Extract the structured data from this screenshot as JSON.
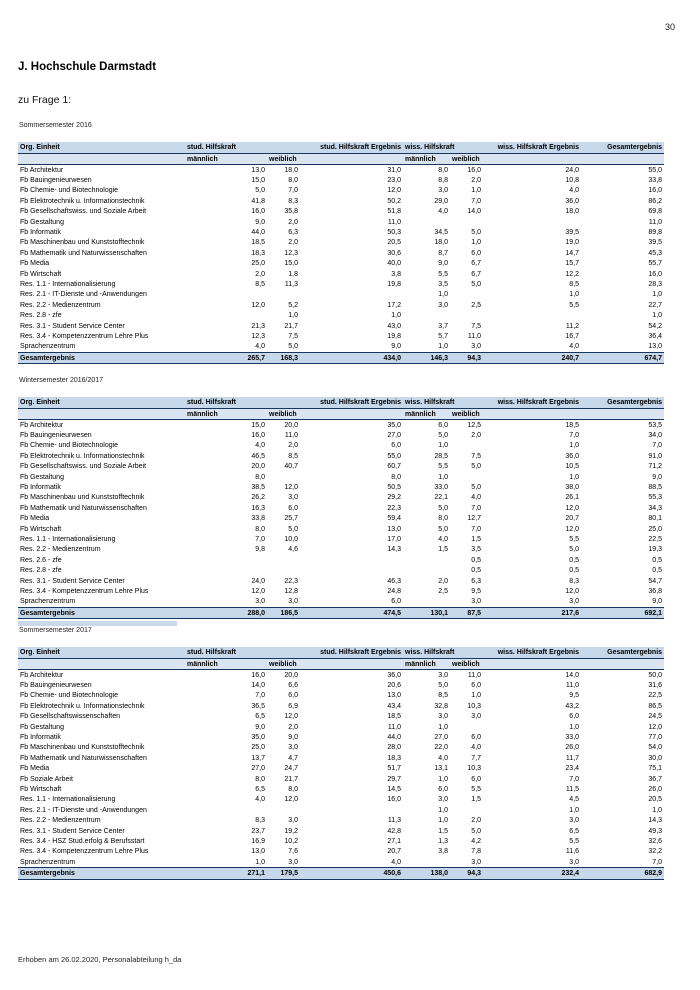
{
  "page": {
    "number": "30",
    "title": "J. Hochschule Darmstadt",
    "subtitle": "zu Frage 1:",
    "footer": "Erhoben am 26.02.2020, Personalabteilung h_da"
  },
  "colors": {
    "header_bg": "#c6d8ea",
    "subheader_bg": "#dbe5f1",
    "total_bg": "#c6d8ea",
    "rule": "#17375e"
  },
  "columns": {
    "org": "Org. Einheit",
    "stud": "stud. Hilfskraft",
    "stud_ergebnis": "stud. Hilfskraft Ergebnis",
    "wiss": "wiss. Hilfskraft",
    "wiss_ergebnis": "wiss. Hilfskraft Ergebnis",
    "gesamt": "Gesamtergebnis",
    "maennlich": "männlich",
    "weiblich": "weiblich"
  },
  "tables": [
    {
      "label": "Sommersemester 2016",
      "rows": [
        [
          "Fb Architektur",
          "13,0",
          "18,0",
          "31,0",
          "8,0",
          "16,0",
          "24,0",
          "55,0"
        ],
        [
          "Fb Bauingenieurwesen",
          "15,0",
          "8,0",
          "23,0",
          "8,8",
          "2,0",
          "10,8",
          "33,8"
        ],
        [
          "Fb Chemie- und Biotechnologie",
          "5,0",
          "7,0",
          "12,0",
          "3,0",
          "1,0",
          "4,0",
          "16,0"
        ],
        [
          "Fb Elektrotechnik u. Informationstechnik",
          "41,8",
          "8,3",
          "50,2",
          "29,0",
          "7,0",
          "36,0",
          "86,2"
        ],
        [
          "Fb Gesellschaftswiss. und Soziale Arbeit",
          "16,0",
          "35,8",
          "51,8",
          "4,0",
          "14,0",
          "18,0",
          "69,8"
        ],
        [
          "Fb Gestaltung",
          "9,0",
          "2,0",
          "11,0",
          "",
          "",
          "",
          "11,0"
        ],
        [
          "Fb Informatik",
          "44,0",
          "6,3",
          "50,3",
          "34,5",
          "5,0",
          "39,5",
          "89,8"
        ],
        [
          "Fb Maschinenbau und Kunststofftechnik",
          "18,5",
          "2,0",
          "20,5",
          "18,0",
          "1,0",
          "19,0",
          "39,5"
        ],
        [
          "Fb Mathematik und Naturwissenschaften",
          "18,3",
          "12,3",
          "30,6",
          "8,7",
          "6,0",
          "14,7",
          "45,3"
        ],
        [
          "Fb Media",
          "25,0",
          "15,0",
          "40,0",
          "9,0",
          "6,7",
          "15,7",
          "55,7"
        ],
        [
          "Fb Wirtschaft",
          "2,0",
          "1,8",
          "3,8",
          "5,5",
          "6,7",
          "12,2",
          "16,0"
        ],
        [
          "Res. 1.1 - Internationalisierung",
          "8,5",
          "11,3",
          "19,8",
          "3,5",
          "5,0",
          "8,5",
          "28,3"
        ],
        [
          "Res. 2.1 - IT-Dienste und -Anwendungen",
          "",
          "",
          "",
          "1,0",
          "",
          "1,0",
          "1,0"
        ],
        [
          "Res. 2.2 - Medienzentrum",
          "12,0",
          "5,2",
          "17,2",
          "3,0",
          "2,5",
          "5,5",
          "22,7"
        ],
        [
          "Res. 2.8 - zfe",
          "",
          "1,0",
          "1,0",
          "",
          "",
          "",
          "1,0"
        ],
        [
          "Res. 3.1 - Student Service Center",
          "21,3",
          "21,7",
          "43,0",
          "3,7",
          "7,5",
          "11,2",
          "54,2"
        ],
        [
          "Res. 3.4 - Kompetenzzentrum Lehre Plus",
          "12,3",
          "7,5",
          "19,8",
          "5,7",
          "11,0",
          "16,7",
          "36,4"
        ],
        [
          "Sprachenzentrum",
          "4,0",
          "5,0",
          "9,0",
          "1,0",
          "3,0",
          "4,0",
          "13,0"
        ]
      ],
      "total": [
        "Gesamtergebnis",
        "265,7",
        "168,3",
        "434,0",
        "146,3",
        "94,3",
        "240,7",
        "674,7"
      ],
      "trailing_bar": false
    },
    {
      "label": "Wintersemester 2016/2017",
      "rows": [
        [
          "Fb Architektur",
          "15,0",
          "20,0",
          "35,0",
          "6,0",
          "12,5",
          "18,5",
          "53,5"
        ],
        [
          "Fb Bauingenieurwesen",
          "16,0",
          "11,0",
          "27,0",
          "5,0",
          "2,0",
          "7,0",
          "34,0"
        ],
        [
          "Fb Chemie- und Biotechnologie",
          "4,0",
          "2,0",
          "6,0",
          "1,0",
          "",
          "1,0",
          "7,0"
        ],
        [
          "Fb Elektrotechnik u. Informationstechnik",
          "46,5",
          "8,5",
          "55,0",
          "28,5",
          "7,5",
          "36,0",
          "91,0"
        ],
        [
          "Fb Gesellschaftswiss. und Soziale Arbeit",
          "20,0",
          "40,7",
          "60,7",
          "5,5",
          "5,0",
          "10,5",
          "71,2"
        ],
        [
          "Fb Gestaltung",
          "8,0",
          "",
          "8,0",
          "1,0",
          "",
          "1,0",
          "9,0"
        ],
        [
          "Fb Informatik",
          "38,5",
          "12,0",
          "50,5",
          "33,0",
          "5,0",
          "38,0",
          "88,5"
        ],
        [
          "Fb Maschinenbau und Kunststofftechnik",
          "26,2",
          "3,0",
          "29,2",
          "22,1",
          "4,0",
          "26,1",
          "55,3"
        ],
        [
          "Fb Mathematik und Naturwissenschaften",
          "16,3",
          "6,0",
          "22,3",
          "5,0",
          "7,0",
          "12,0",
          "34,3"
        ],
        [
          "Fb Media",
          "33,8",
          "25,7",
          "59,4",
          "8,0",
          "12,7",
          "20,7",
          "80,1"
        ],
        [
          "Fb Wirtschaft",
          "8,0",
          "5,0",
          "13,0",
          "5,0",
          "7,0",
          "12,0",
          "25,0"
        ],
        [
          "Res. 1.1 - Internationalisierung",
          "7,0",
          "10,0",
          "17,0",
          "4,0",
          "1,5",
          "5,5",
          "22,5"
        ],
        [
          "Res. 2.2 - Medienzentrum",
          "9,8",
          "4,6",
          "14,3",
          "1,5",
          "3,5",
          "5,0",
          "19,3"
        ],
        [
          "Res. 2.6 - zfe",
          "",
          "",
          "",
          "",
          "0,5",
          "0,5",
          "0,5"
        ],
        [
          "Res. 2.8 - zfe",
          "",
          "",
          "",
          "",
          "0,5",
          "0,5",
          "0,5"
        ],
        [
          "Res. 3.1 - Student Service Center",
          "24,0",
          "22,3",
          "46,3",
          "2,0",
          "6,3",
          "8,3",
          "54,7"
        ],
        [
          "Res. 3.4 - Kompetenzzentrum Lehre Plus",
          "12,0",
          "12,8",
          "24,8",
          "2,5",
          "9,5",
          "12,0",
          "36,8"
        ],
        [
          "Sprachenzentrum",
          "3,0",
          "3,0",
          "6,0",
          "",
          "3,0",
          "3,0",
          "9,0"
        ]
      ],
      "total": [
        "Gesamtergebnis",
        "288,0",
        "186,5",
        "474,5",
        "130,1",
        "87,5",
        "217,6",
        "692,1"
      ],
      "trailing_bar": true
    },
    {
      "label": "Sommersemester 2017",
      "rows": [
        [
          "Fb Architektur",
          "16,0",
          "20,0",
          "36,0",
          "3,0",
          "11,0",
          "14,0",
          "50,0"
        ],
        [
          "Fb Bauingenieurwesen",
          "14,0",
          "6,6",
          "20,6",
          "5,0",
          "6,0",
          "11,0",
          "31,6"
        ],
        [
          "Fb Chemie- und Biotechnologie",
          "7,0",
          "6,0",
          "13,0",
          "8,5",
          "1,0",
          "9,5",
          "22,5"
        ],
        [
          "Fb Elektrotechnik u. Informationstechnik",
          "36,5",
          "6,9",
          "43,4",
          "32,8",
          "10,3",
          "43,2",
          "86,5"
        ],
        [
          "Fb Gesellschaftswissenschaften",
          "6,5",
          "12,0",
          "18,5",
          "3,0",
          "3,0",
          "6,0",
          "24,5"
        ],
        [
          "Fb Gestaltung",
          "9,0",
          "2,0",
          "11,0",
          "1,0",
          "",
          "1,0",
          "12,0"
        ],
        [
          "Fb Informatik",
          "35,0",
          "9,0",
          "44,0",
          "27,0",
          "6,0",
          "33,0",
          "77,0"
        ],
        [
          "Fb Maschinenbau und Kunststofftechnik",
          "25,0",
          "3,0",
          "28,0",
          "22,0",
          "4,0",
          "26,0",
          "54,0"
        ],
        [
          "Fb Mathematik und Naturwissenschaften",
          "13,7",
          "4,7",
          "18,3",
          "4,0",
          "7,7",
          "11,7",
          "30,0"
        ],
        [
          "Fb Media",
          "27,0",
          "24,7",
          "51,7",
          "13,1",
          "10,3",
          "23,4",
          "75,1"
        ],
        [
          "Fb Soziale Arbeit",
          "8,0",
          "21,7",
          "29,7",
          "1,0",
          "6,0",
          "7,0",
          "36,7"
        ],
        [
          "Fb Wirtschaft",
          "6,5",
          "8,0",
          "14,5",
          "6,0",
          "5,5",
          "11,5",
          "26,0"
        ],
        [
          "Res. 1.1 - Internationalisierung",
          "4,0",
          "12,0",
          "16,0",
          "3,0",
          "1,5",
          "4,5",
          "20,5"
        ],
        [
          "Res. 2.1 - IT-Dienste und -Anwendungen",
          "",
          "",
          "",
          "1,0",
          "",
          "1,0",
          "1,0"
        ],
        [
          "Res. 2.2 - Medienzentrum",
          "8,3",
          "3,0",
          "11,3",
          "1,0",
          "2,0",
          "3,0",
          "14,3"
        ],
        [
          "Res. 3.1 - Student Service Center",
          "23,7",
          "19,2",
          "42,8",
          "1,5",
          "5,0",
          "6,5",
          "49,3"
        ],
        [
          "Res. 3.4 - HSZ Stud.erfolg & Berufsstart",
          "16,9",
          "10,2",
          "27,1",
          "1,3",
          "4,2",
          "5,5",
          "32,6"
        ],
        [
          "Res. 3.4 - Kompetenzzentrum Lehre Plus",
          "13,0",
          "7,6",
          "20,7",
          "3,8",
          "7,8",
          "11,6",
          "32,2"
        ],
        [
          "Sprachenzentrum",
          "1,0",
          "3,0",
          "4,0",
          "",
          "3,0",
          "3,0",
          "7,0"
        ]
      ],
      "total": [
        "Gesamtergebnis",
        "271,1",
        "179,5",
        "450,6",
        "138,0",
        "94,3",
        "232,4",
        "682,9"
      ],
      "trailing_bar": false
    }
  ]
}
